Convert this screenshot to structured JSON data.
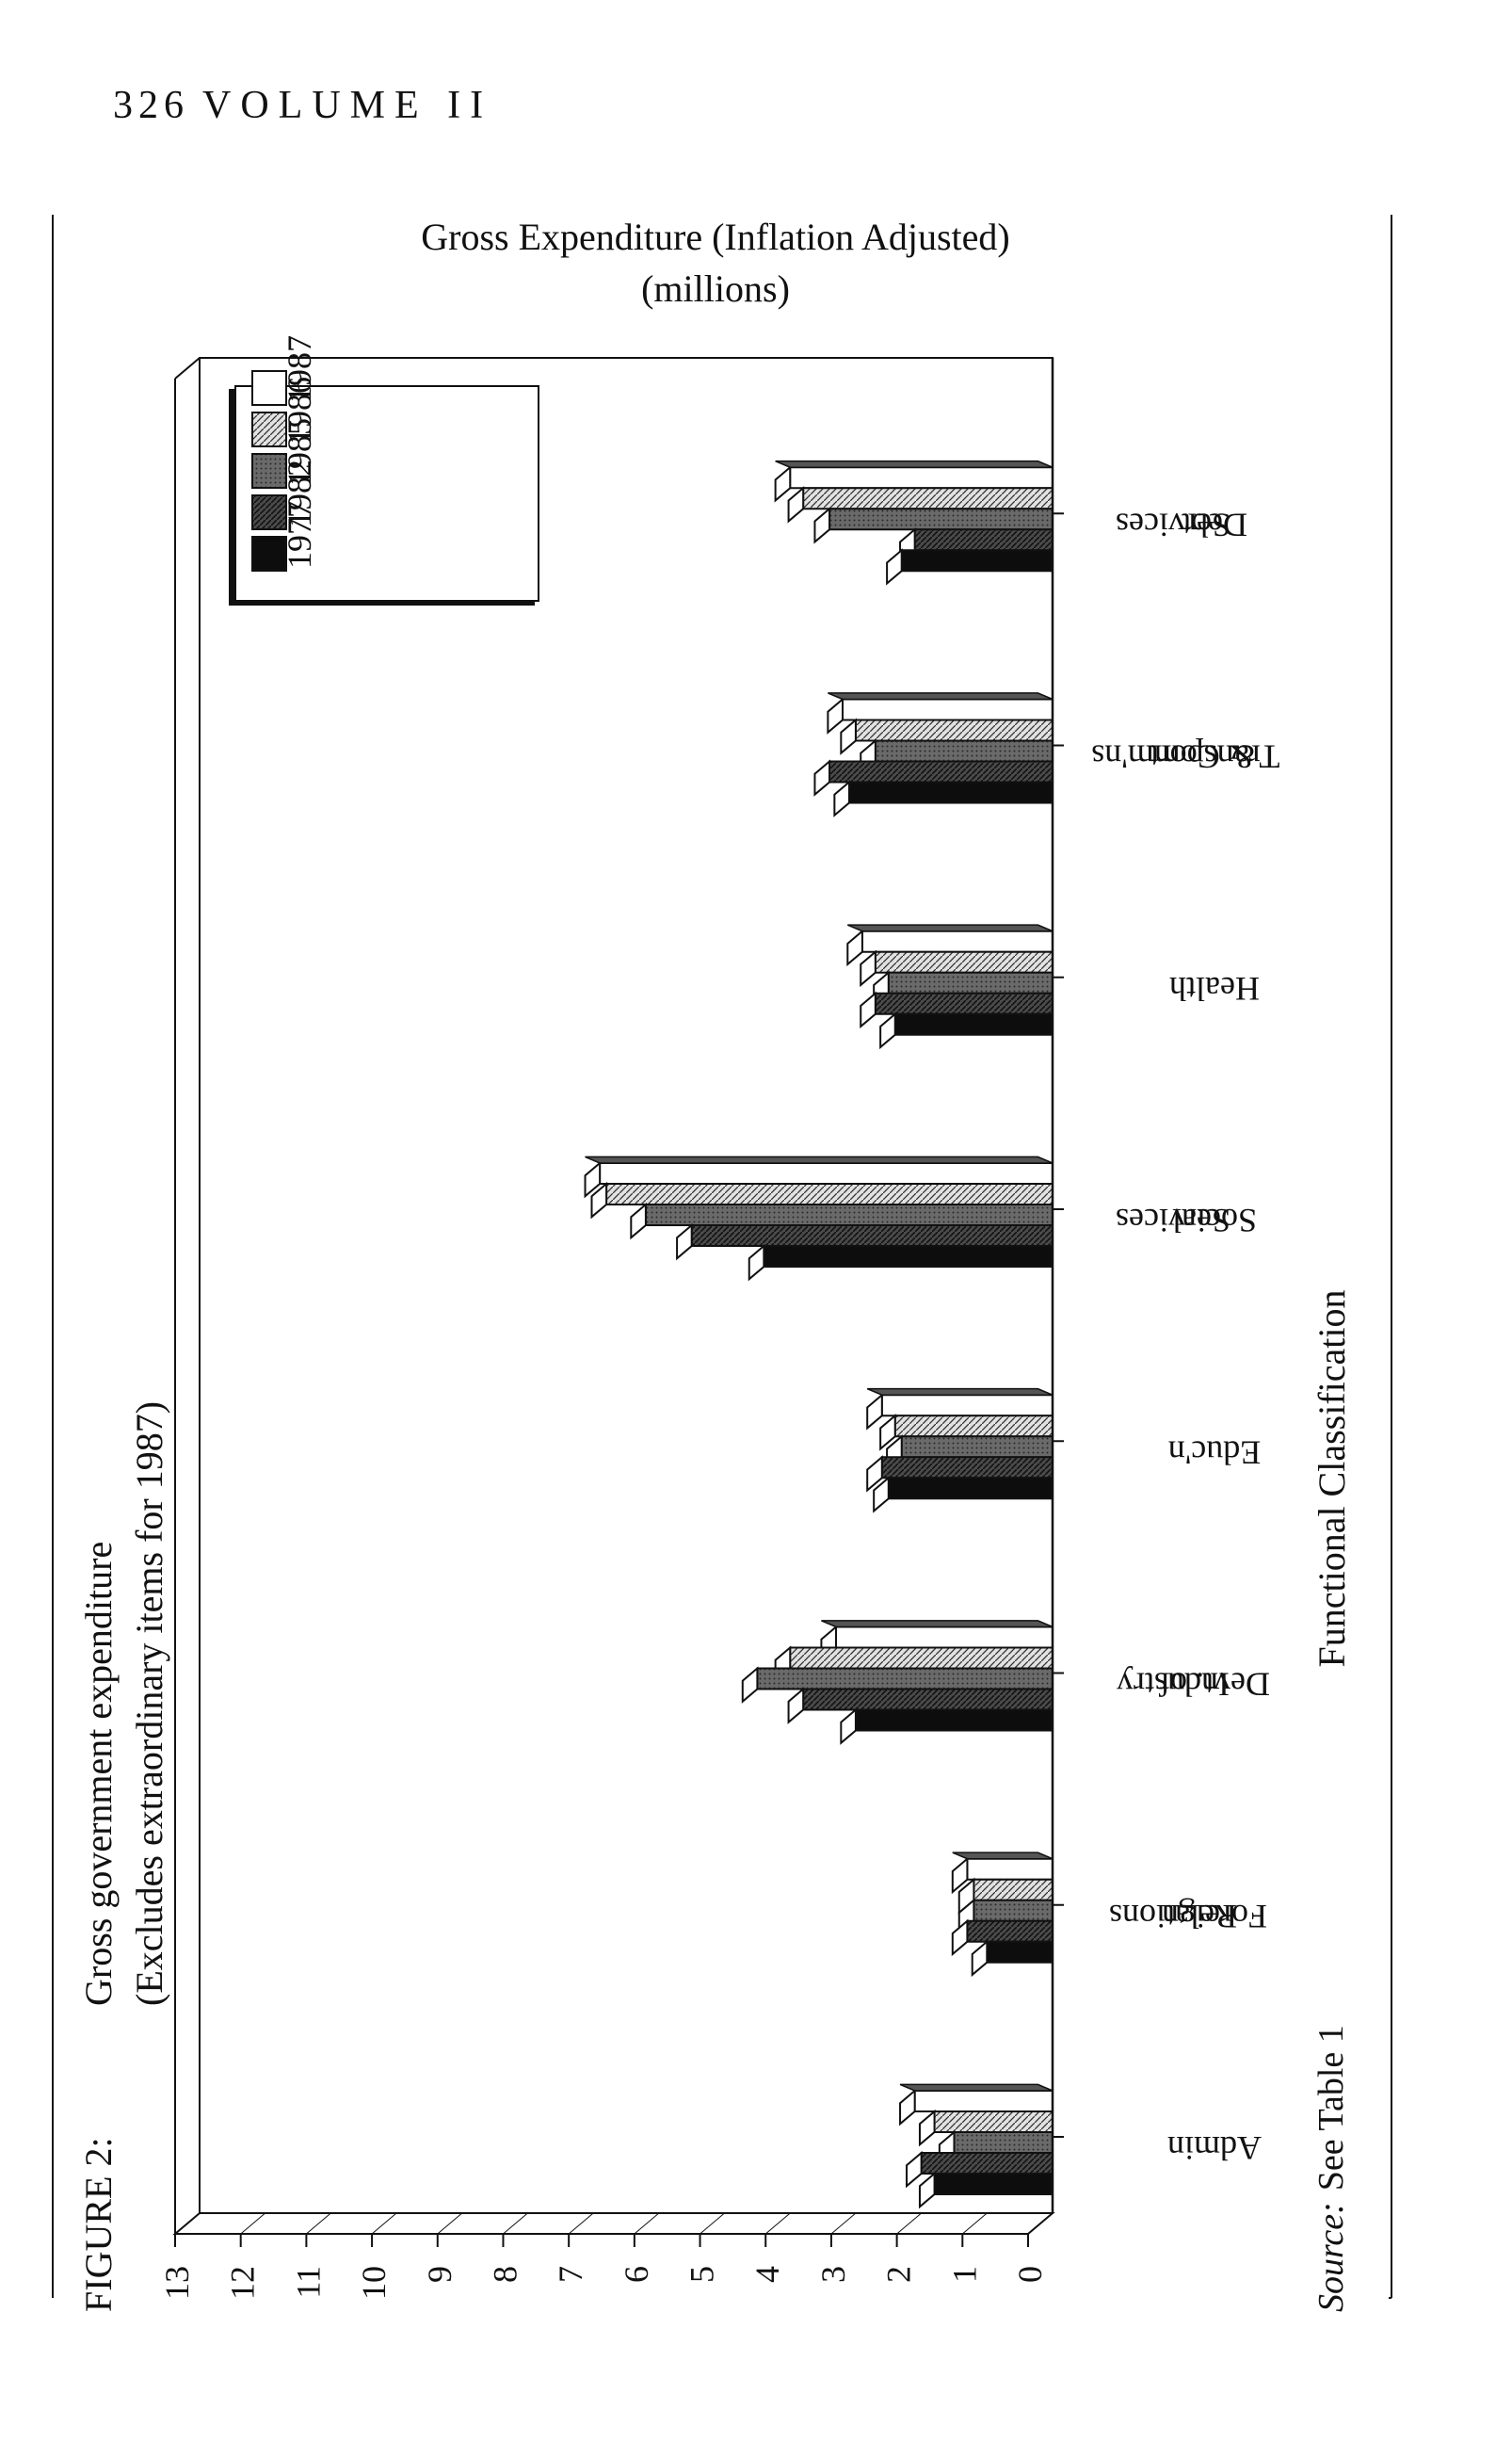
{
  "page_header": {
    "page_number": "326",
    "volume": "VOLUME II"
  },
  "figure": {
    "label": "FIGURE 2:",
    "caption_line1": "Gross government expenditure",
    "caption_line2": "(Excludes extraordinary items for 1987)",
    "source_label": "Source:",
    "source_text": "See Table 1"
  },
  "colors": {
    "s1977": "#0d0d0d",
    "s1982": "#3c3c3c",
    "s1985": "#5e5e5e",
    "s1986": "#d6d6d6",
    "s1987": "#ffffff",
    "axis": "#111111",
    "grid": "#c8c8c8"
  },
  "chart_data": {
    "type": "bar",
    "title_line1": "Gross Expenditure (Inflation Adjusted)",
    "title_line2": "(millions)",
    "xlabel": "Functional Classification",
    "ylabel": "",
    "ylim": [
      0,
      13
    ],
    "yticks": [
      "0",
      "1",
      "2",
      "3",
      "4",
      "5",
      "6",
      "7",
      "8",
      "9",
      "10",
      "11",
      "12",
      "13"
    ],
    "categories": [
      "Admin",
      "Foreign Relations",
      "Devt. of Industry",
      "Educ'n",
      "Social Services",
      "Health",
      "Transport & Comm'ns",
      "Debt Services"
    ],
    "category_lines": [
      [
        "Admin"
      ],
      [
        "Foreign",
        "Relations"
      ],
      [
        "Devt. of",
        "Industry"
      ],
      [
        "Educ'n"
      ],
      [
        "Social",
        "Services"
      ],
      [
        "Health"
      ],
      [
        "Transport",
        "& Comm'ns"
      ],
      [
        "Debt",
        "Services"
      ]
    ],
    "legend_position": "top-right",
    "series": [
      {
        "name": "1977",
        "color_key": "s1977",
        "values": [
          1.8,
          1.0,
          3.0,
          2.5,
          4.4,
          2.4,
          3.1,
          2.3
        ]
      },
      {
        "name": "1982",
        "color_key": "s1982",
        "values": [
          2.0,
          1.3,
          3.8,
          2.6,
          5.5,
          2.7,
          3.4,
          2.1
        ]
      },
      {
        "name": "1985",
        "color_key": "s1985",
        "values": [
          1.5,
          1.2,
          4.5,
          2.3,
          6.2,
          2.5,
          2.7,
          3.4
        ]
      },
      {
        "name": "1986",
        "color_key": "s1986",
        "values": [
          1.8,
          1.2,
          4.0,
          2.4,
          6.8,
          2.7,
          3.0,
          3.8
        ]
      },
      {
        "name": "1987",
        "color_key": "s1987",
        "values": [
          2.1,
          1.3,
          3.3,
          2.6,
          6.9,
          2.9,
          3.2,
          4.0
        ]
      }
    ]
  }
}
